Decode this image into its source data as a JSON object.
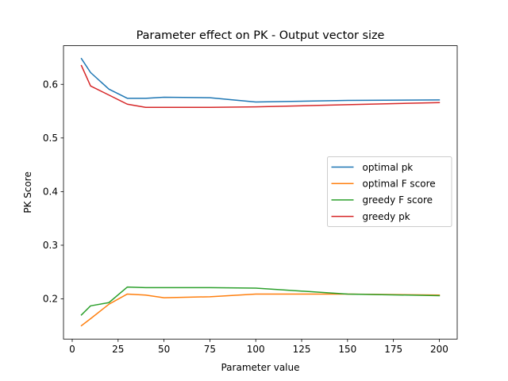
{
  "chart_data": {
    "type": "line",
    "title": "Parameter effect on PK - Output vector size",
    "xlabel": "Parameter value",
    "ylabel": "PK Score",
    "xlim": [
      -4.75,
      209.75
    ],
    "ylim": [
      0.125,
      0.672
    ],
    "xticks": [
      0,
      25,
      50,
      75,
      100,
      125,
      150,
      175,
      200
    ],
    "yticks": [
      0.2,
      0.3,
      0.4,
      0.5,
      0.6
    ],
    "grid": false,
    "legend_position": "center-right",
    "x": [
      5,
      10,
      20,
      30,
      40,
      50,
      75,
      100,
      150,
      200
    ],
    "series": [
      {
        "name": "optimal pk",
        "color": "#1f77b4",
        "values": [
          0.648,
          0.622,
          0.591,
          0.574,
          0.574,
          0.576,
          0.575,
          0.567,
          0.57,
          0.571
        ]
      },
      {
        "name": "optimal F score",
        "color": "#ff7f0e",
        "values": [
          0.15,
          0.163,
          0.19,
          0.209,
          0.207,
          0.202,
          0.204,
          0.209,
          0.209,
          0.207
        ]
      },
      {
        "name": "greedy F score",
        "color": "#2ca02c",
        "values": [
          0.17,
          0.187,
          0.193,
          0.222,
          0.221,
          0.221,
          0.221,
          0.22,
          0.209,
          0.206
        ]
      },
      {
        "name": "greedy pk",
        "color": "#d62728",
        "values": [
          0.635,
          0.597,
          0.58,
          0.563,
          0.557,
          0.557,
          0.557,
          0.558,
          0.562,
          0.566
        ]
      }
    ]
  }
}
